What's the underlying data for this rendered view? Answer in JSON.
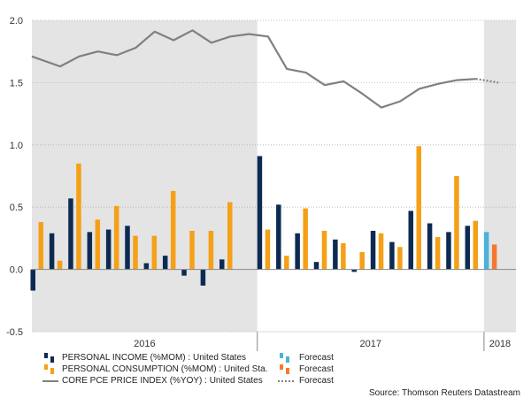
{
  "chart_data": {
    "type": "bar+line",
    "title": "",
    "xlabel": "",
    "ylabel": "",
    "ylim": [
      -0.5,
      2.0
    ],
    "yticks": [
      "2.0",
      "1.5",
      "1.0",
      "0.5",
      "0.0",
      "-0.5"
    ],
    "x_groups": [
      "2016",
      "2017",
      "2018"
    ],
    "months": [
      "2016-01",
      "2016-02",
      "2016-03",
      "2016-04",
      "2016-05",
      "2016-06",
      "2016-07",
      "2016-08",
      "2016-09",
      "2016-10",
      "2016-11",
      "2016-12",
      "2017-01",
      "2017-02",
      "2017-03",
      "2017-04",
      "2017-05",
      "2017-06",
      "2017-07",
      "2017-08",
      "2017-09",
      "2017-10",
      "2017-11",
      "2017-12",
      "2018-01"
    ],
    "series": [
      {
        "name": "PERSONAL INCOME (%MOM) : United States",
        "kind": "bar",
        "color": "#0d2b52",
        "values": [
          -0.17,
          0.29,
          0.57,
          0.3,
          0.32,
          0.35,
          0.05,
          0.11,
          -0.05,
          -0.13,
          0.08,
          null,
          0.91,
          0.52,
          0.29,
          0.06,
          0.24,
          -0.02,
          0.31,
          0.22,
          0.47,
          0.37,
          0.3,
          0.35,
          null
        ]
      },
      {
        "name": "PERSONAL CONSUMPTION (%MOM) : United Sta...",
        "kind": "bar",
        "color": "#f5a016",
        "values": [
          0.38,
          0.07,
          0.85,
          0.4,
          0.51,
          0.27,
          0.27,
          0.63,
          0.31,
          0.31,
          0.54,
          null,
          0.32,
          0.11,
          0.49,
          0.31,
          0.21,
          0.14,
          0.29,
          0.18,
          0.99,
          0.26,
          0.75,
          0.39,
          null
        ]
      },
      {
        "name": "CORE PCE PRICE INDEX (%YOY) : United States",
        "kind": "line",
        "color": "#808080",
        "values": [
          1.71,
          1.63,
          1.71,
          1.75,
          1.72,
          1.78,
          1.91,
          1.84,
          1.92,
          1.82,
          1.87,
          1.89,
          1.87,
          1.61,
          1.58,
          1.48,
          1.51,
          1.41,
          1.3,
          1.35,
          1.45,
          1.49,
          1.52,
          1.53,
          null
        ]
      }
    ],
    "forecasts": [
      {
        "name": "Forecast",
        "of": "PERSONAL INCOME (%MOM) : United States",
        "month": "2018-01",
        "value": 0.3,
        "color": "#4bb3d9"
      },
      {
        "name": "Forecast",
        "of": "PERSONAL CONSUMPTION (%MOM) : United Sta...",
        "month": "2018-01",
        "value": 0.2,
        "color": "#f47a30"
      },
      {
        "name": "Forecast",
        "of": "CORE PCE PRICE INDEX (%YOY) : United States",
        "from_month": "2017-12",
        "from_value": 1.53,
        "month": "2018-01",
        "value": 1.5,
        "color": "#808080",
        "style": "dotted"
      }
    ],
    "shaded_periods": [
      "2016",
      "2018"
    ],
    "grid": true,
    "legend_position": "bottom-left"
  },
  "legend": {
    "rows": [
      {
        "label": "PERSONAL INCOME (%MOM) : United States",
        "forecast_label": "Forecast"
      },
      {
        "label": "PERSONAL CONSUMPTION (%MOM) : United Sta...",
        "forecast_label": "Forecast"
      },
      {
        "label": "CORE PCE PRICE INDEX (%YOY) : United States",
        "forecast_label": "Forecast"
      }
    ]
  },
  "source": "Source: Thomson Reuters Datastream"
}
